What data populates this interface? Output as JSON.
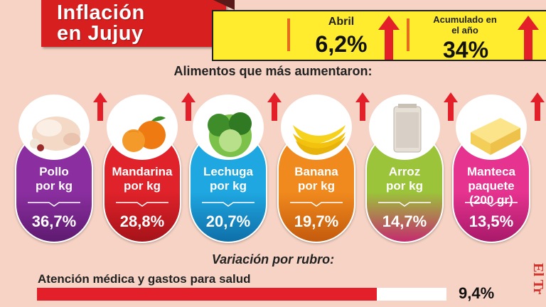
{
  "header": {
    "title_line1": "Inflación",
    "title_line2": "en Jujuy"
  },
  "stats": {
    "month_label": "Abril",
    "month_value": "6,2%",
    "ytd_label_line1": "Acumulado en",
    "ytd_label_line2": "el año",
    "ytd_value": "34%"
  },
  "subtitle": "Alimentos que más aumentaron:",
  "chart_data": {
    "type": "bar",
    "title": "Alimentos que más aumentaron:",
    "categories": [
      "Pollo por kg",
      "Mandarina por kg",
      "Lechuga por kg",
      "Banana por kg",
      "Arroz por kg",
      "Manteca paquete (200 gr)"
    ],
    "values": [
      36.7,
      28.8,
      20.7,
      19.7,
      14.7,
      13.5
    ],
    "value_labels": [
      "36,7%",
      "28,8%",
      "20,7%",
      "19,7%",
      "14,7%",
      "13,5%"
    ],
    "colors": [
      "#8b2fa0",
      "#e0222a",
      "#1fa7e1",
      "#f08a1e",
      "#9bc43a",
      "#e6338f"
    ]
  },
  "cards": [
    {
      "line1": "Pollo",
      "line2": "por kg",
      "line3": "",
      "pct": "36,7%",
      "color": "#8b2fa0",
      "dark": "#5e1a70",
      "icon": "chicken-icon"
    },
    {
      "line1": "Mandarina",
      "line2": "por kg",
      "line3": "",
      "pct": "28,8%",
      "color": "#e0222a",
      "dark": "#a51319",
      "icon": "mandarin-icon"
    },
    {
      "line1": "Lechuga",
      "line2": "por kg",
      "line3": "",
      "pct": "20,7%",
      "color": "#1fa7e1",
      "dark": "#0f6fa8",
      "icon": "lettuce-icon"
    },
    {
      "line1": "Banana",
      "line2": "por kg",
      "line3": "",
      "pct": "19,7%",
      "color": "#f08a1e",
      "dark": "#c45a0d",
      "icon": "banana-icon"
    },
    {
      "line1": "Arroz",
      "line2": "por kg",
      "line3": "",
      "pct": "14,7%",
      "color": "#9bc43a",
      "dark": "#c52b6e",
      "icon": "rice-icon"
    },
    {
      "line1": "Manteca",
      "line2": "paquete",
      "line3": "(200 gr)",
      "pct": "13,5%",
      "color": "#e6338f",
      "dark": "#a8196a",
      "icon": "butter-icon"
    }
  ],
  "rubro": {
    "title": "Variación por rubro:",
    "label": "Atención médica y gastos para salud",
    "value": "9,4%",
    "fill_fraction": 0.83
  },
  "watermark": "El Tr"
}
